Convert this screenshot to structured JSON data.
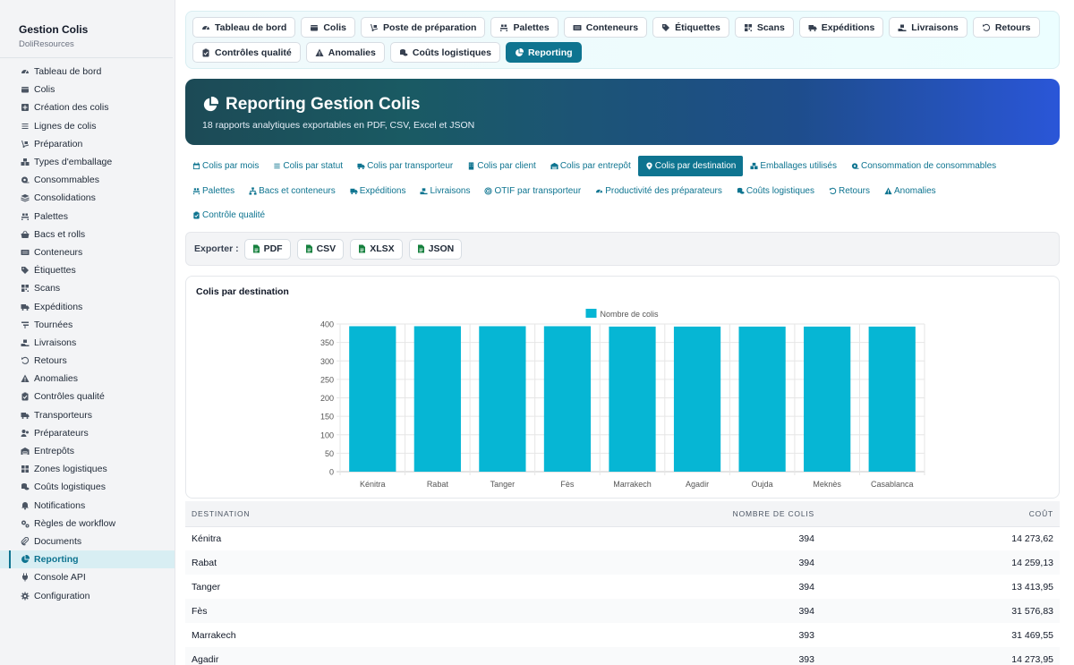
{
  "sidebar": {
    "title": "Gestion Colis",
    "subtitle": "DoliResources",
    "items": [
      {
        "label": "Tableau de bord",
        "icon": "gauge-icon"
      },
      {
        "label": "Colis",
        "icon": "box-icon"
      },
      {
        "label": "Création des colis",
        "icon": "plus-square-icon"
      },
      {
        "label": "Lignes de colis",
        "icon": "list-icon"
      },
      {
        "label": "Préparation",
        "icon": "dolly-icon"
      },
      {
        "label": "Types d'emballage",
        "icon": "boxes-icon"
      },
      {
        "label": "Consommables",
        "icon": "tape-icon"
      },
      {
        "label": "Consolidations",
        "icon": "layers-icon"
      },
      {
        "label": "Palettes",
        "icon": "pallet-icon"
      },
      {
        "label": "Bacs et rolls",
        "icon": "basket-icon"
      },
      {
        "label": "Conteneurs",
        "icon": "container-icon"
      },
      {
        "label": "Étiquettes",
        "icon": "tags-icon"
      },
      {
        "label": "Scans",
        "icon": "qrcode-icon"
      },
      {
        "label": "Expéditions",
        "icon": "shipping-icon"
      },
      {
        "label": "Tournées",
        "icon": "route-icon"
      },
      {
        "label": "Livraisons",
        "icon": "delivery-icon"
      },
      {
        "label": "Retours",
        "icon": "undo-icon"
      },
      {
        "label": "Anomalies",
        "icon": "warning-icon"
      },
      {
        "label": "Contrôles qualité",
        "icon": "clipboard-check-icon"
      },
      {
        "label": "Transporteurs",
        "icon": "truck-icon"
      },
      {
        "label": "Préparateurs",
        "icon": "users-icon"
      },
      {
        "label": "Entrepôts",
        "icon": "warehouse-icon"
      },
      {
        "label": "Zones logistiques",
        "icon": "grid-icon"
      },
      {
        "label": "Coûts logistiques",
        "icon": "coins-icon"
      },
      {
        "label": "Notifications",
        "icon": "bell-icon"
      },
      {
        "label": "Règles de workflow",
        "icon": "cogs-icon"
      },
      {
        "label": "Documents",
        "icon": "paperclip-icon"
      },
      {
        "label": "Reporting",
        "icon": "chart-pie-icon"
      },
      {
        "label": "Console API",
        "icon": "plug-icon"
      },
      {
        "label": "Configuration",
        "icon": "gear-icon"
      }
    ],
    "active_index": 27
  },
  "tabs": {
    "row1": [
      {
        "label": "Tableau de bord",
        "icon": "gauge-icon"
      },
      {
        "label": "Colis",
        "icon": "box-icon"
      },
      {
        "label": "Poste de préparation",
        "icon": "dolly-icon"
      },
      {
        "label": "Palettes",
        "icon": "pallet-icon"
      },
      {
        "label": "Conteneurs",
        "icon": "container-icon"
      },
      {
        "label": "Étiquettes",
        "icon": "tags-icon"
      },
      {
        "label": "Scans",
        "icon": "qrcode-icon"
      },
      {
        "label": "Expéditions",
        "icon": "shipping-icon"
      },
      {
        "label": "Livraisons",
        "icon": "delivery-icon"
      },
      {
        "label": "Retours",
        "icon": "undo-icon"
      }
    ],
    "row2": [
      {
        "label": "Contrôles qualité",
        "icon": "clipboard-check-icon"
      },
      {
        "label": "Anomalies",
        "icon": "warning-icon"
      },
      {
        "label": "Coûts logistiques",
        "icon": "coins-icon"
      },
      {
        "label": "Reporting",
        "icon": "chart-pie-icon",
        "active": true
      }
    ]
  },
  "banner": {
    "title": "Reporting Gestion Colis",
    "subtitle": "18 rapports analytiques exportables en PDF, CSV, Excel et JSON",
    "icon": "chart-pie-icon"
  },
  "reports": {
    "rows": [
      [
        {
          "label": "Colis par mois",
          "icon": "calendar-icon"
        },
        {
          "label": "Colis par statut",
          "icon": "list-icon"
        },
        {
          "label": "Colis par transporteur",
          "icon": "truck-icon"
        },
        {
          "label": "Colis par client",
          "icon": "building-icon"
        },
        {
          "label": "Colis par entrepôt",
          "icon": "warehouse-icon"
        },
        {
          "label": "Colis par destination",
          "icon": "map-pin-icon",
          "active": true
        },
        {
          "label": "Emballages utilisés",
          "icon": "boxes-icon"
        },
        {
          "label": "Consommation de consommables",
          "icon": "tape-icon"
        }
      ],
      [
        {
          "label": "Palettes",
          "icon": "pallet-icon"
        },
        {
          "label": "Bacs et conteneurs",
          "icon": "sitemap-icon"
        },
        {
          "label": "Expéditions",
          "icon": "shipping-icon"
        },
        {
          "label": "Livraisons",
          "icon": "delivery-icon"
        },
        {
          "label": "OTIF par transporteur",
          "icon": "target-icon"
        },
        {
          "label": "Productivité des préparateurs",
          "icon": "gauge-icon"
        },
        {
          "label": "Coûts logistiques",
          "icon": "coins-icon"
        },
        {
          "label": "Retours",
          "icon": "undo-icon"
        },
        {
          "label": "Anomalies",
          "icon": "warning-icon"
        }
      ],
      [
        {
          "label": "Contrôle qualité",
          "icon": "clipboard-check-icon"
        }
      ]
    ]
  },
  "export": {
    "label": "Exporter :",
    "buttons": [
      "PDF",
      "CSV",
      "XLSX",
      "JSON"
    ]
  },
  "chart_data": {
    "type": "bar",
    "title": "Colis par destination",
    "categories": [
      "Kénitra",
      "Rabat",
      "Tanger",
      "Fès",
      "Marrakech",
      "Agadir",
      "Oujda",
      "Meknès",
      "Casablanca"
    ],
    "series": [
      {
        "name": "Nombre de colis",
        "values": [
          394,
          394,
          394,
          394,
          393,
          393,
          393,
          393,
          393
        ],
        "color": "#06b6d4"
      }
    ],
    "ylim": [
      0,
      400
    ],
    "yticks": [
      0,
      50,
      100,
      150,
      200,
      250,
      300,
      350,
      400
    ],
    "grid": true,
    "legend": "top-center",
    "xlabel": "",
    "ylabel": ""
  },
  "table": {
    "headers": [
      "Destination",
      "Nombre de colis",
      "Coût"
    ],
    "rows": [
      [
        "Kénitra",
        "394",
        "14 273,62"
      ],
      [
        "Rabat",
        "394",
        "14 259,13"
      ],
      [
        "Tanger",
        "394",
        "13 413,95"
      ],
      [
        "Fès",
        "394",
        "31 576,83"
      ],
      [
        "Marrakech",
        "393",
        "31 469,55"
      ],
      [
        "Agadir",
        "393",
        "14 273,95"
      ]
    ]
  },
  "colors": {
    "accent": "#0e7490",
    "bar": "#06b6d4"
  }
}
